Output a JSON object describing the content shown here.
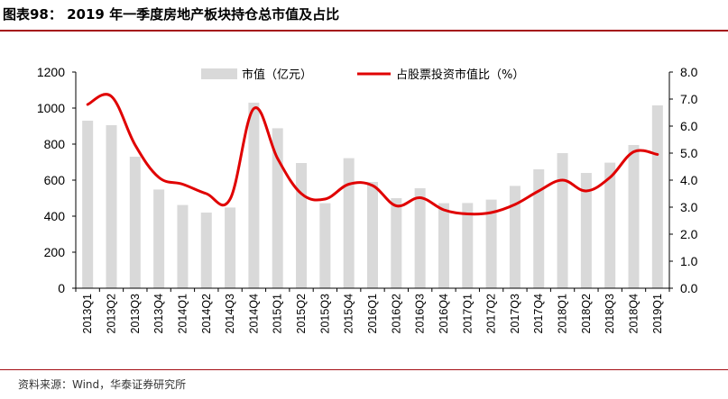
{
  "header": {
    "title": "图表98：  2019 年一季度房地产板块持仓总市值及占比",
    "source": "资料来源：Wind，华泰证券研究所"
  },
  "colors": {
    "bar": "#d9d9d9",
    "line": "#e00000",
    "rule": "#a50f15"
  },
  "chart_data": {
    "type": "bar",
    "categories": [
      "2013Q1",
      "2013Q2",
      "2013Q3",
      "2013Q4",
      "2014Q1",
      "2014Q2",
      "2014Q3",
      "2014Q4",
      "2015Q1",
      "2015Q2",
      "2015Q3",
      "2015Q4",
      "2016Q1",
      "2016Q2",
      "2016Q3",
      "2016Q4",
      "2017Q1",
      "2017Q2",
      "2017Q3",
      "2017Q4",
      "2018Q1",
      "2018Q2",
      "2018Q3",
      "2018Q4",
      "2019Q1"
    ],
    "series": [
      {
        "name": "市值（亿元）",
        "type": "bar",
        "axis": "left",
        "values": [
          930,
          905,
          730,
          548,
          462,
          420,
          448,
          1030,
          888,
          695,
          472,
          722,
          590,
          500,
          555,
          472,
          473,
          492,
          568,
          660,
          750,
          640,
          697,
          795,
          1015
        ]
      },
      {
        "name": "占股票投资市值比（%）",
        "type": "line",
        "axis": "right",
        "values": [
          6.8,
          7.1,
          5.3,
          4.1,
          3.85,
          3.5,
          3.3,
          6.65,
          4.8,
          3.5,
          3.3,
          3.85,
          3.8,
          3.05,
          3.35,
          2.9,
          2.75,
          2.8,
          3.1,
          3.6,
          4.0,
          3.6,
          4.1,
          5.05,
          4.95
        ]
      }
    ],
    "left_axis": {
      "min": 0,
      "max": 1200,
      "ticks": [
        "0",
        "200",
        "400",
        "600",
        "800",
        "1000",
        "1200"
      ]
    },
    "right_axis": {
      "min": 0,
      "max": 8,
      "ticks": [
        "0.0",
        "1.0",
        "2.0",
        "3.0",
        "4.0",
        "5.0",
        "6.0",
        "7.0",
        "8.0"
      ]
    },
    "legend_position": "top-center",
    "grid": false
  }
}
